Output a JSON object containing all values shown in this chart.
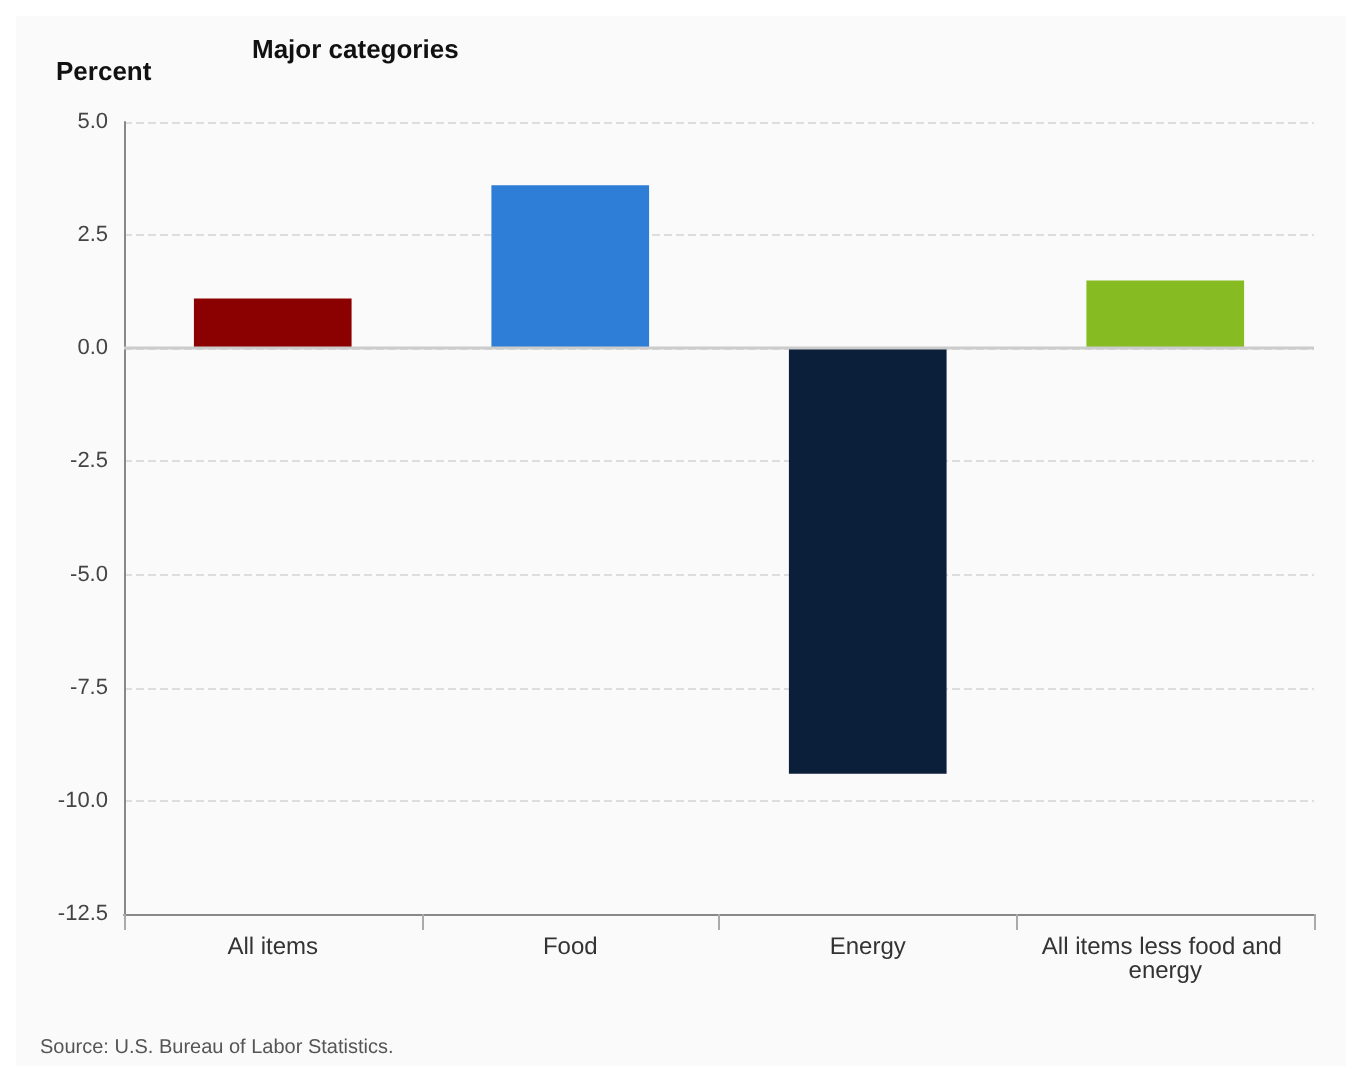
{
  "chart_data": {
    "type": "bar",
    "title": "Major categories",
    "ylabel": "Percent",
    "categories": [
      "All items",
      "Food",
      "Energy",
      "All items less food and energy"
    ],
    "values": [
      1.1,
      3.6,
      -9.4,
      1.5
    ],
    "colors": [
      "#8b0000",
      "#2e7dd6",
      "#0b1f3a",
      "#86bb22"
    ],
    "ylim": [
      -12.5,
      5
    ],
    "yticks": [
      {
        "value": -12.5,
        "label": "-12.5"
      },
      {
        "value": -10,
        "label": "-10.0"
      },
      {
        "value": -7.5,
        "label": "-7.5"
      },
      {
        "value": -5,
        "label": "-5.0"
      },
      {
        "value": -2.5,
        "label": "-2.5"
      },
      {
        "value": 0,
        "label": "0.0"
      },
      {
        "value": 2.5,
        "label": "2.5"
      },
      {
        "value": 5,
        "label": "5.0"
      }
    ],
    "grid": "y",
    "annotations": [
      "Source: U.S. Bureau of Labor Statistics."
    ]
  }
}
